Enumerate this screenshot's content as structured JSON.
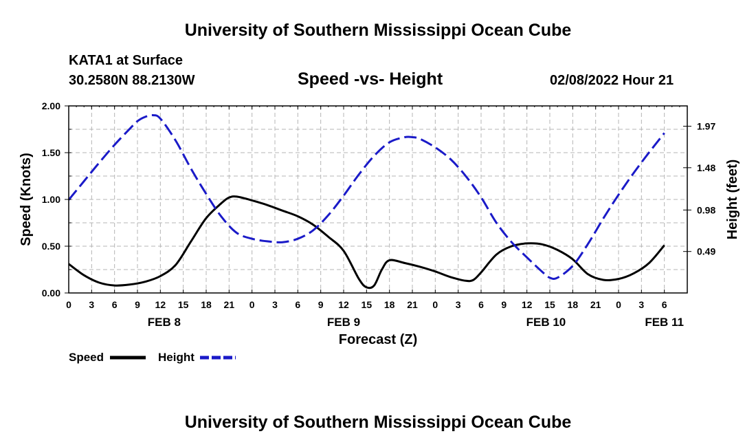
{
  "header": {
    "title_top": "University of Southern Mississippi Ocean Cube",
    "station": "KATA1 at Surface",
    "coords": "30.2580N  88.2130W",
    "datetime": "02/08/2022 Hour 21",
    "title_bottom": "University of Southern Mississippi Ocean Cube"
  },
  "colors": {
    "speed": "#000000",
    "height": "#1a1ac8",
    "grid": "#b4b4b4"
  },
  "chart_data": {
    "type": "line",
    "title": "Speed -vs- Height",
    "xlabel": "Forecast (Z)",
    "ylabel": "Speed (Knots)",
    "ylabel_right": "Height (feet)",
    "ylim": [
      0,
      2
    ],
    "ylim_right": [
      0.0,
      2.21
    ],
    "grid": true,
    "legend_position": "bottom-left",
    "x_hours_range": [
      0,
      81
    ],
    "x_ticks": [
      {
        "h": 0,
        "label": "0"
      },
      {
        "h": 3,
        "label": "3"
      },
      {
        "h": 6,
        "label": "6"
      },
      {
        "h": 9,
        "label": "9"
      },
      {
        "h": 12,
        "label": "12"
      },
      {
        "h": 15,
        "label": "15"
      },
      {
        "h": 18,
        "label": "18"
      },
      {
        "h": 21,
        "label": "21"
      },
      {
        "h": 24,
        "label": "0"
      },
      {
        "h": 27,
        "label": "3"
      },
      {
        "h": 30,
        "label": "6"
      },
      {
        "h": 33,
        "label": "9"
      },
      {
        "h": 36,
        "label": "12"
      },
      {
        "h": 39,
        "label": "15"
      },
      {
        "h": 42,
        "label": "18"
      },
      {
        "h": 45,
        "label": "21"
      },
      {
        "h": 48,
        "label": "0"
      },
      {
        "h": 51,
        "label": "3"
      },
      {
        "h": 54,
        "label": "6"
      },
      {
        "h": 57,
        "label": "9"
      },
      {
        "h": 60,
        "label": "12"
      },
      {
        "h": 63,
        "label": "15"
      },
      {
        "h": 66,
        "label": "18"
      },
      {
        "h": 69,
        "label": "21"
      },
      {
        "h": 72,
        "label": "0"
      },
      {
        "h": 75,
        "label": "3"
      },
      {
        "h": 78,
        "label": "6"
      }
    ],
    "day_labels": [
      {
        "h": 12.5,
        "label": "FEB 8"
      },
      {
        "h": 36,
        "label": "FEB 9"
      },
      {
        "h": 62.5,
        "label": "FEB 10"
      },
      {
        "h": 78,
        "label": "FEB 11"
      }
    ],
    "y_ticks_left": [
      {
        "v": 0.0,
        "label": "0.00"
      },
      {
        "v": 0.5,
        "label": "0.50"
      },
      {
        "v": 1.0,
        "label": "1.00"
      },
      {
        "v": 1.5,
        "label": "1.50"
      },
      {
        "v": 2.0,
        "label": "2.00"
      }
    ],
    "y_ticks_right": [
      {
        "v": 0.49,
        "label": "0.49"
      },
      {
        "v": 0.98,
        "label": "0.98"
      },
      {
        "v": 1.48,
        "label": "1.48"
      },
      {
        "v": 1.97,
        "label": "1.97"
      }
    ],
    "series": [
      {
        "name": "Speed",
        "axis": "left",
        "style": "solid",
        "x": [
          0,
          2,
          4,
          6,
          8,
          10,
          12,
          14,
          16,
          18,
          20,
          21,
          22,
          24,
          26,
          28,
          30,
          32,
          34,
          36,
          38,
          39,
          40,
          41,
          42,
          44,
          46,
          48,
          50,
          52,
          53,
          54,
          56,
          58,
          60,
          62,
          64,
          66,
          68,
          70,
          72,
          74,
          76,
          78
        ],
        "values": [
          0.31,
          0.19,
          0.11,
          0.08,
          0.09,
          0.12,
          0.18,
          0.3,
          0.55,
          0.8,
          0.96,
          1.02,
          1.03,
          0.99,
          0.94,
          0.88,
          0.82,
          0.73,
          0.6,
          0.45,
          0.15,
          0.06,
          0.08,
          0.25,
          0.35,
          0.32,
          0.28,
          0.23,
          0.17,
          0.13,
          0.14,
          0.22,
          0.41,
          0.5,
          0.53,
          0.52,
          0.46,
          0.36,
          0.2,
          0.14,
          0.15,
          0.21,
          0.32,
          0.51
        ]
      },
      {
        "name": "Height",
        "axis": "right",
        "style": "dashed",
        "x": [
          0,
          2,
          4,
          6,
          8,
          9,
          10,
          11,
          12,
          14,
          16,
          18,
          20,
          22,
          24,
          26,
          28,
          30,
          32,
          34,
          36,
          38,
          40,
          42,
          44,
          45,
          46,
          48,
          50,
          52,
          54,
          56,
          58,
          60,
          62,
          63,
          64,
          66,
          68,
          70,
          72,
          74,
          76,
          78
        ],
        "values": [
          1.1,
          1.32,
          1.54,
          1.75,
          1.94,
          2.03,
          2.08,
          2.1,
          2.06,
          1.8,
          1.47,
          1.17,
          0.9,
          0.71,
          0.64,
          0.61,
          0.6,
          0.64,
          0.74,
          0.92,
          1.15,
          1.4,
          1.62,
          1.78,
          1.84,
          1.84,
          1.82,
          1.72,
          1.58,
          1.38,
          1.13,
          0.83,
          0.6,
          0.42,
          0.25,
          0.18,
          0.18,
          0.32,
          0.58,
          0.88,
          1.16,
          1.42,
          1.66,
          1.89
        ]
      }
    ]
  },
  "legend": {
    "speed_label": "Speed",
    "height_label": "Height"
  }
}
